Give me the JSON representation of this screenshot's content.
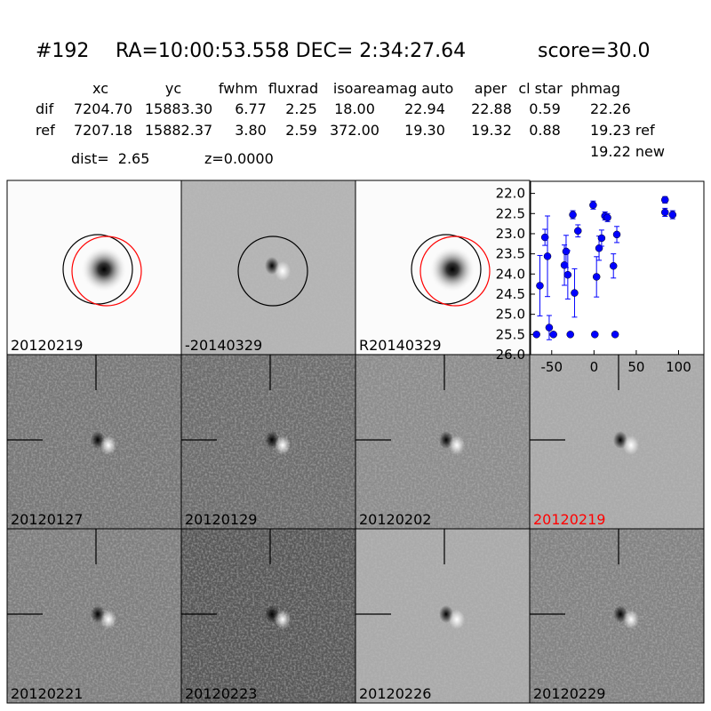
{
  "header": {
    "id": "#192",
    "coords": "RA=10:00:53.558 DEC= 2:34:27.64",
    "score": "score=30.0",
    "dist": "dist=  2.65",
    "z": "z=0.0000"
  },
  "table": {
    "columns": [
      "xc",
      "yc",
      "fwhm",
      "fluxrad",
      "isoarea",
      "mag auto",
      "aper",
      "cl star",
      "phmag"
    ],
    "rows": [
      {
        "label": "dif",
        "values": [
          "7204.70",
          "15883.30",
          "6.77",
          "2.25",
          "18.00",
          "22.94",
          "22.88",
          "0.59",
          "22.26"
        ]
      },
      {
        "label": "ref",
        "values": [
          "7207.18",
          "15882.37",
          "3.80",
          "2.59",
          "372.00",
          "19.30",
          "19.32",
          "0.88",
          "19.23 ref"
        ]
      }
    ],
    "extra": "19.22 new"
  },
  "stamps": [
    {
      "label": "20120219",
      "color": "#000000"
    },
    {
      "label": "-20140329",
      "color": "#000000"
    },
    {
      "label": "R20140329",
      "color": "#000000"
    },
    {
      "label": "20120127",
      "color": "#000000"
    },
    {
      "label": "20120129",
      "color": "#000000"
    },
    {
      "label": "20120202",
      "color": "#000000"
    },
    {
      "label": "20120219",
      "color": "#ff0000"
    },
    {
      "label": "20120221",
      "color": "#000000"
    },
    {
      "label": "20120223",
      "color": "#000000"
    },
    {
      "label": "20120226",
      "color": "#000000"
    },
    {
      "label": "20120229",
      "color": "#000000"
    }
  ],
  "chart_data": {
    "type": "scatter",
    "color": "#0000ff",
    "x": [
      -68,
      -64,
      -58,
      -55,
      -53,
      -48,
      -35,
      -33,
      -31,
      -28,
      -25,
      -23,
      -19,
      -1,
      1,
      3,
      6,
      9,
      13,
      16,
      23,
      25,
      27,
      84,
      84,
      93
    ],
    "values": [
      25.5,
      24.29,
      23.09,
      23.56,
      25.33,
      25.5,
      23.78,
      23.44,
      24.02,
      25.5,
      22.53,
      24.47,
      22.93,
      22.29,
      25.5,
      24.07,
      23.36,
      23.11,
      22.56,
      22.6,
      23.8,
      25.5,
      23.02,
      22.16,
      22.47,
      22.53
    ],
    "errors": [
      0,
      0.75,
      0.2,
      1.0,
      0.3,
      0,
      0.5,
      0.4,
      0.6,
      0,
      0.1,
      0.6,
      0.15,
      0.1,
      0,
      0.5,
      0.3,
      0.2,
      0.1,
      0.1,
      0.3,
      0,
      0.2,
      0.08,
      0.1,
      0.1
    ],
    "xlim": [
      -75,
      130
    ],
    "ylim": [
      26.0,
      21.7
    ],
    "xticks": [
      -50,
      0,
      50,
      100
    ],
    "yticks": [
      {
        "value": 22,
        "label": "22.0"
      },
      22.5,
      {
        "value": 23,
        "label": "23.0"
      },
      23.5,
      {
        "value": 24,
        "label": "24.0"
      },
      24.5,
      {
        "value": 25,
        "label": "25.0"
      },
      25.5,
      {
        "value": 26,
        "label": "26.0"
      }
    ]
  }
}
